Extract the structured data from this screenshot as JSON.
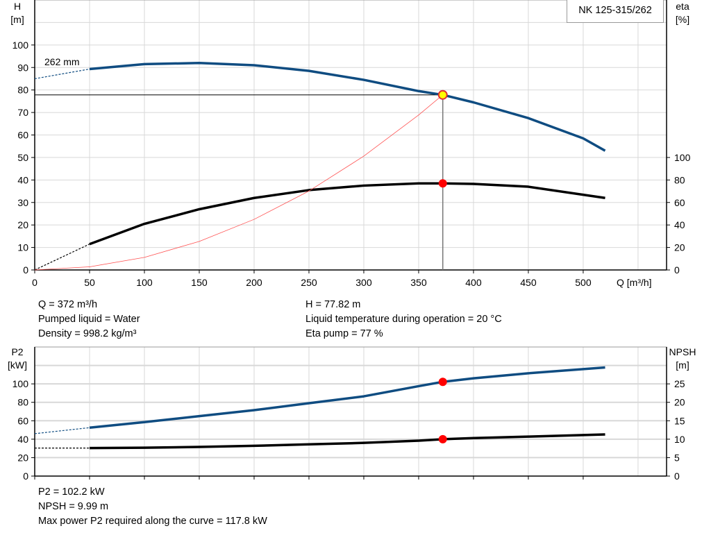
{
  "title_box": "NK 125-315/262",
  "chart_data": [
    {
      "type": "line",
      "xlabel": "Q [m³/h]",
      "ylabel": "H\n[m]",
      "y2label": "eta\n[%]",
      "xlim": [
        0,
        576
      ],
      "ylim": [
        0,
        120
      ],
      "y2lim": [
        0,
        240
      ],
      "xticks": [
        0,
        50,
        100,
        150,
        200,
        250,
        300,
        350,
        400,
        450,
        500
      ],
      "yticks": [
        0,
        10,
        20,
        30,
        40,
        50,
        60,
        70,
        80,
        90,
        100
      ],
      "y2ticks": [
        0,
        20,
        40,
        60,
        80,
        100
      ],
      "grid": true,
      "annotation": "262 mm",
      "series": [
        {
          "name": "H",
          "axis": "left",
          "color": "#0f4c81",
          "x": [
            50,
            100,
            150,
            200,
            250,
            300,
            350,
            372,
            400,
            450,
            500,
            520
          ],
          "y": [
            89.3,
            91.5,
            92,
            91,
            88.5,
            84.5,
            79.5,
            77.82,
            74.5,
            67.5,
            58.5,
            53
          ],
          "extrapolated": {
            "x": [
              0,
              50
            ],
            "y": [
              85,
              89.3
            ]
          }
        },
        {
          "name": "eta",
          "axis": "right",
          "color": "#000000",
          "x": [
            50,
            100,
            150,
            200,
            250,
            300,
            350,
            372,
            400,
            450,
            520
          ],
          "y": [
            23,
            41,
            54,
            64,
            71,
            75,
            77,
            77,
            76.5,
            74,
            64
          ],
          "extrapolated": {
            "x": [
              0,
              50
            ],
            "y": [
              0,
              23
            ]
          }
        },
        {
          "name": "system curve",
          "axis": "left",
          "color": "#ff5050",
          "x": [
            0,
            50,
            100,
            150,
            200,
            250,
            300,
            350,
            372
          ],
          "y": [
            0,
            1.4,
            5.6,
            12.7,
            22.5,
            35.1,
            50.6,
            68.9,
            77.82
          ]
        }
      ],
      "operating_point": {
        "Q": 372,
        "H": 77.82,
        "eta": 77
      }
    },
    {
      "type": "line",
      "ylabel": "P2\n[kW]",
      "y2label": "NPSH\n[m]",
      "xlim": [
        0,
        576
      ],
      "ylim": [
        0,
        140
      ],
      "y2lim": [
        0,
        35
      ],
      "yticks": [
        0,
        20,
        40,
        60,
        80,
        100
      ],
      "y2ticks": [
        0,
        5,
        10,
        15,
        20,
        25
      ],
      "grid": true,
      "series": [
        {
          "name": "P2",
          "axis": "left",
          "color": "#0f4c81",
          "x": [
            50,
            100,
            150,
            200,
            250,
            300,
            350,
            372,
            400,
            450,
            520
          ],
          "y": [
            52.5,
            58.5,
            65,
            71.5,
            79,
            86.5,
            97.5,
            102.2,
            106,
            111.5,
            117.8
          ],
          "extrapolated": {
            "x": [
              0,
              50
            ],
            "y": [
              46,
              52.5
            ]
          }
        },
        {
          "name": "NPSH",
          "axis": "right",
          "color": "#000000",
          "x": [
            50,
            100,
            150,
            200,
            250,
            300,
            350,
            372,
            400,
            450,
            520
          ],
          "y": [
            7.6,
            7.7,
            7.9,
            8.2,
            8.6,
            9.0,
            9.6,
            9.99,
            10.3,
            10.7,
            11.3
          ],
          "extrapolated": {
            "x": [
              0,
              50
            ],
            "y": [
              7.6,
              7.6
            ]
          }
        }
      ],
      "operating_point": {
        "Q": 372,
        "P2": 102.2,
        "NPSH": 9.99
      }
    }
  ],
  "info_top": {
    "q": "Q = 372 m³/h",
    "liquid": "Pumped liquid = Water",
    "density": "Density = 998.2 kg/m³",
    "h": "H = 77.82 m",
    "temp": "Liquid temperature during operation = 20 °C",
    "eta": "Eta pump = 77 %"
  },
  "info_bottom": {
    "p2": "P2 = 102.2 kW",
    "npsh": "NPSH = 9.99 m",
    "max": "Max power P2 required along the curve = 117.8 kW"
  }
}
